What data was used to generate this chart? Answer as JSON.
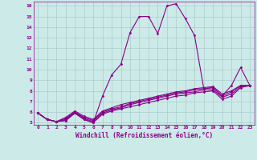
{
  "xlabel": "Windchill (Refroidissement éolien,°C)",
  "background_color": "#cceae8",
  "line_color": "#880088",
  "grid_color": "#aacccc",
  "xlim": [
    -0.5,
    23.5
  ],
  "ylim": [
    4.8,
    16.4
  ],
  "xticks": [
    0,
    1,
    2,
    3,
    4,
    5,
    6,
    7,
    8,
    9,
    10,
    11,
    12,
    13,
    14,
    15,
    16,
    17,
    18,
    19,
    20,
    21,
    22,
    23
  ],
  "yticks": [
    5,
    6,
    7,
    8,
    9,
    10,
    11,
    12,
    13,
    14,
    15,
    16
  ],
  "series": [
    [
      5.9,
      5.3,
      5.1,
      5.2,
      5.9,
      5.3,
      5.0,
      7.5,
      9.5,
      10.5,
      13.5,
      15.0,
      15.0,
      13.4,
      16.0,
      16.2,
      14.8,
      13.2,
      8.2,
      8.3,
      7.5,
      8.5,
      10.2,
      8.5
    ],
    [
      5.9,
      5.3,
      5.1,
      5.2,
      5.9,
      5.3,
      5.0,
      5.8,
      6.1,
      6.3,
      6.5,
      6.7,
      6.9,
      7.1,
      7.3,
      7.5,
      7.6,
      7.8,
      7.9,
      8.0,
      7.2,
      7.5,
      8.3,
      8.5
    ],
    [
      5.9,
      5.3,
      5.1,
      5.3,
      6.0,
      5.4,
      5.1,
      5.9,
      6.2,
      6.4,
      6.7,
      6.9,
      7.1,
      7.3,
      7.5,
      7.7,
      7.8,
      7.9,
      8.1,
      8.1,
      7.4,
      7.7,
      8.4,
      8.5
    ],
    [
      5.9,
      5.3,
      5.1,
      5.4,
      6.0,
      5.5,
      5.2,
      6.0,
      6.3,
      6.5,
      6.8,
      7.0,
      7.2,
      7.4,
      7.6,
      7.8,
      7.9,
      8.1,
      8.2,
      8.3,
      7.5,
      7.9,
      8.5,
      8.5
    ],
    [
      5.9,
      5.3,
      5.1,
      5.5,
      6.1,
      5.6,
      5.3,
      6.1,
      6.4,
      6.7,
      6.9,
      7.1,
      7.3,
      7.5,
      7.7,
      7.9,
      8.0,
      8.2,
      8.3,
      8.4,
      7.7,
      8.0,
      8.5,
      8.5
    ]
  ]
}
